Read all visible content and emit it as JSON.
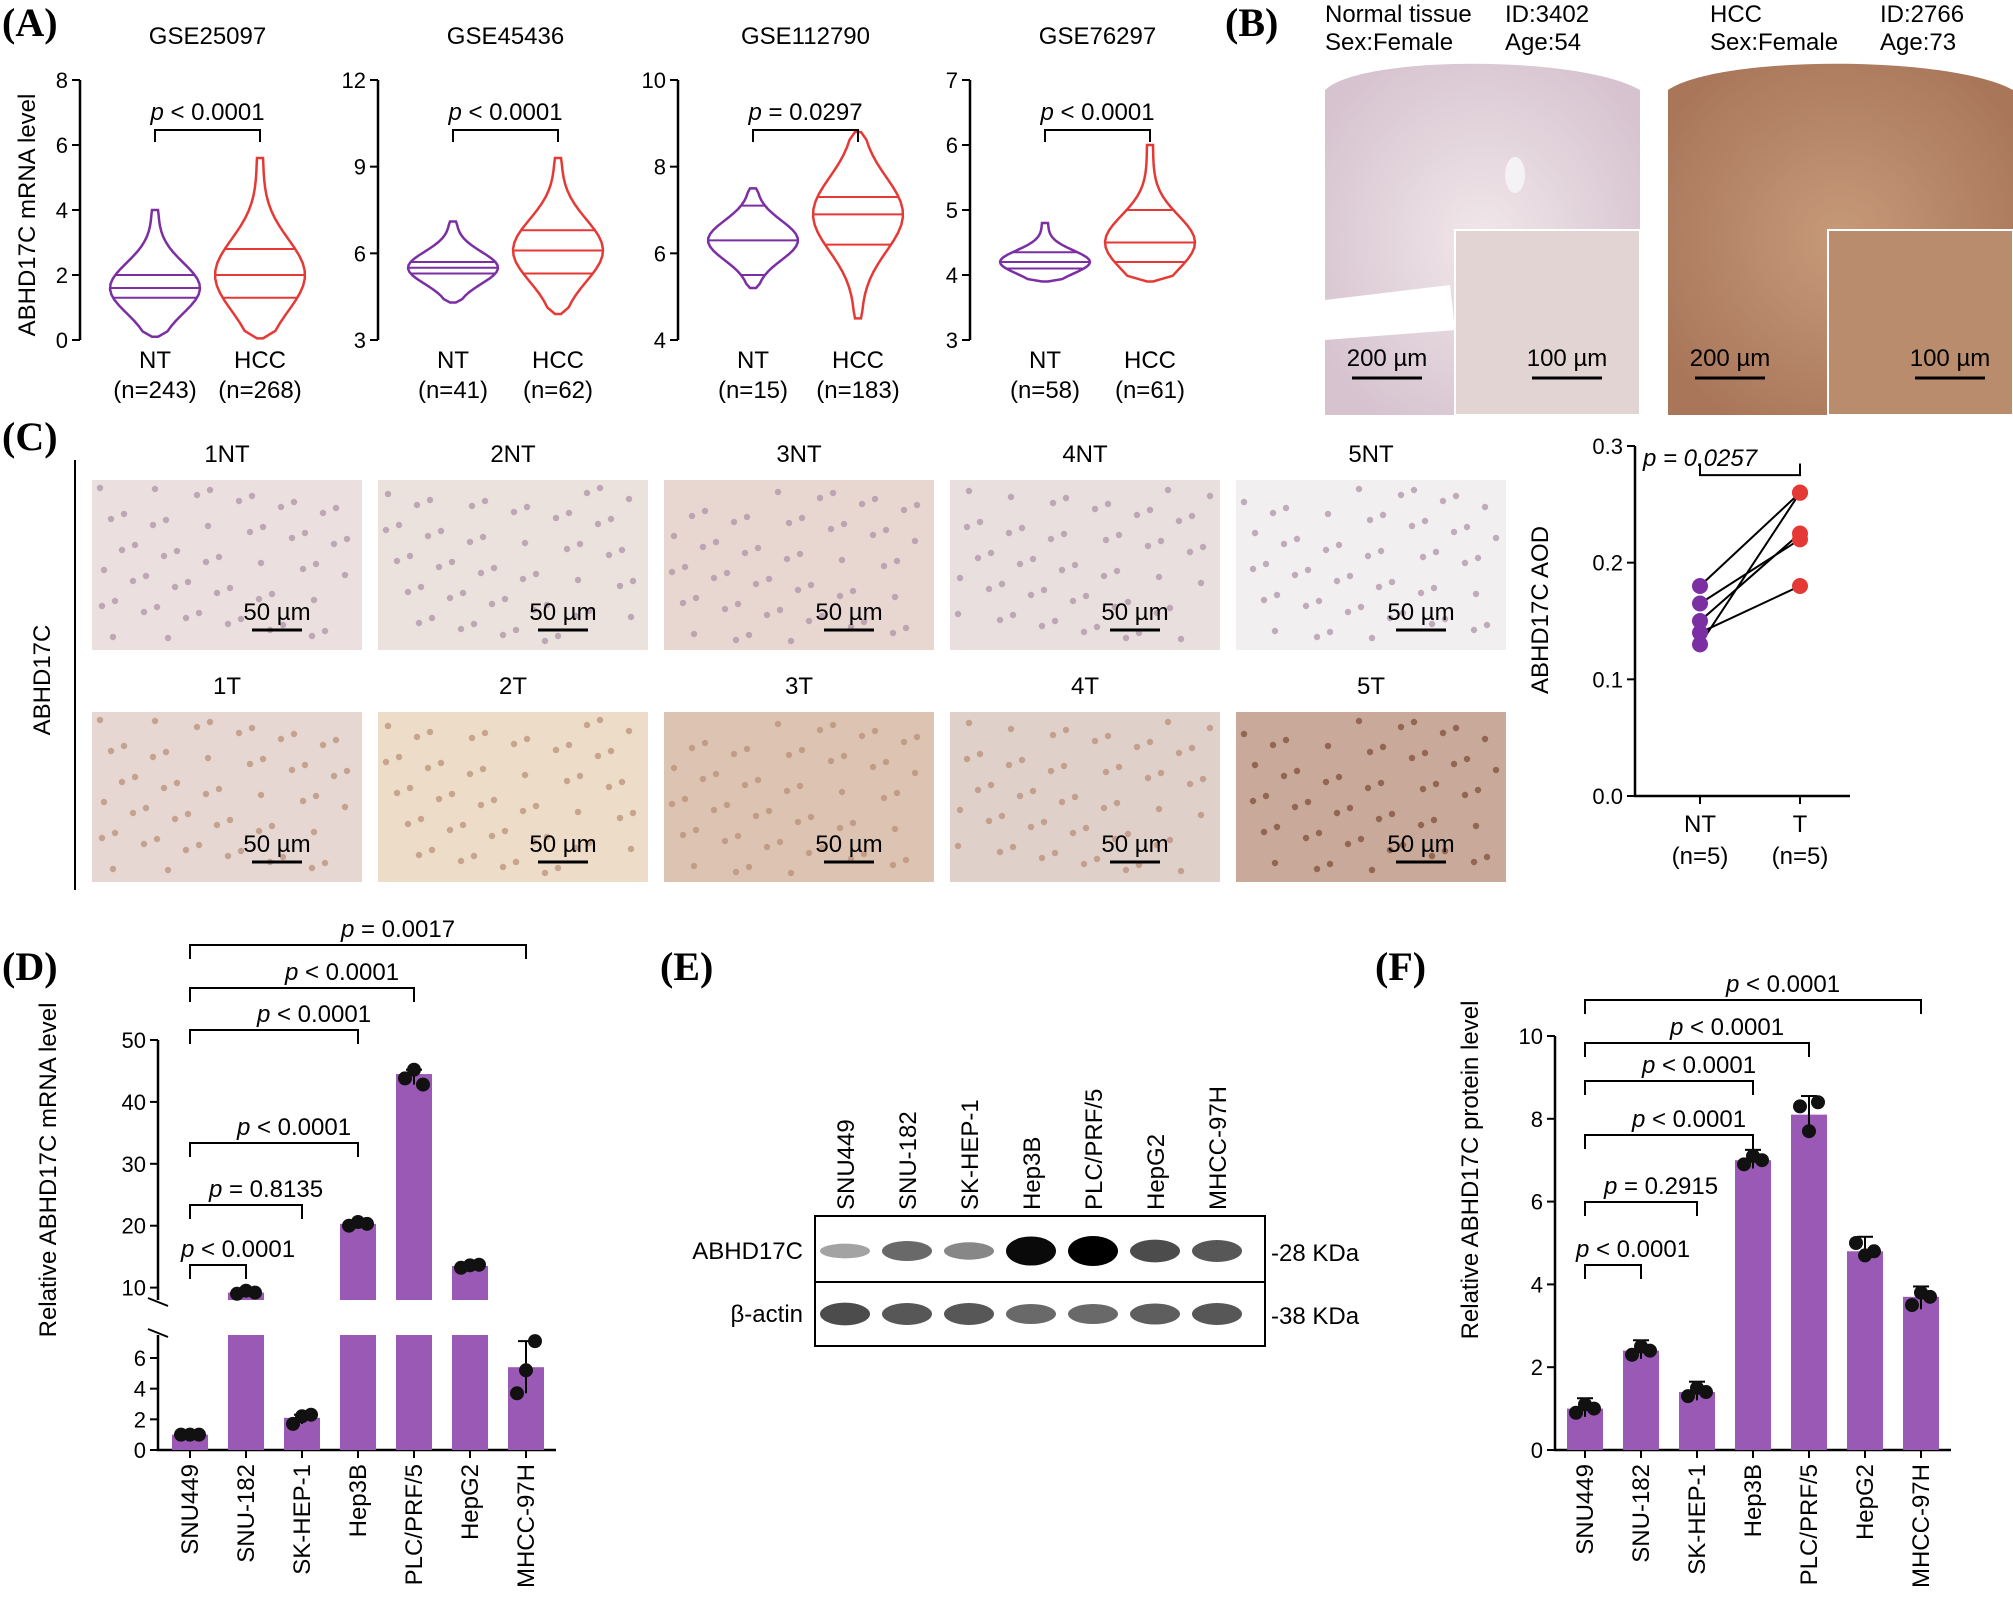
{
  "panels": {
    "A": {
      "letter": "(A)",
      "ylabel": "ABHD17C mRNA level",
      "charts": [
        {
          "title": "GSE25097",
          "p": "p < 0.0001",
          "ylim": [
            0,
            8
          ],
          "yticks": [
            "0",
            "2",
            "4",
            "6",
            "8"
          ],
          "groups": [
            {
              "label": "NT",
              "n": "(n=243)",
              "color": "#7b2fa3",
              "min": 0.1,
              "max": 4.0,
              "q": [
                1.3,
                1.6,
                2.0
              ]
            },
            {
              "label": "HCC",
              "n": "(n=268)",
              "color": "#e53935",
              "min": 0.05,
              "max": 5.6,
              "q": [
                1.3,
                2.0,
                2.8
              ]
            }
          ]
        },
        {
          "title": "GSE45436",
          "p": "p < 0.0001",
          "ylim": [
            3,
            12
          ],
          "yticks": [
            "3",
            "6",
            "9",
            "12"
          ],
          "groups": [
            {
              "label": "NT",
              "n": "(n=41)",
              "color": "#7b2fa3",
              "min": 4.3,
              "max": 7.1,
              "q": [
                5.3,
                5.5,
                5.7
              ]
            },
            {
              "label": "HCC",
              "n": "(n=62)",
              "color": "#e53935",
              "min": 3.9,
              "max": 9.3,
              "q": [
                5.3,
                6.1,
                6.8
              ]
            }
          ]
        },
        {
          "title": "GSE112790",
          "p": "p = 0.0297",
          "ylim": [
            4,
            10
          ],
          "yticks": [
            "4",
            "6",
            "8",
            "10"
          ],
          "groups": [
            {
              "label": "NT",
              "n": "(n=15)",
              "color": "#7b2fa3",
              "min": 5.2,
              "max": 7.5,
              "q": [
                5.5,
                6.3,
                7.1
              ]
            },
            {
              "label": "HCC",
              "n": "(n=183)",
              "color": "#e53935",
              "min": 4.5,
              "max": 8.8,
              "q": [
                6.2,
                6.9,
                7.3
              ]
            }
          ]
        },
        {
          "title": "GSE76297",
          "p": "p < 0.0001",
          "ylim": [
            3,
            7
          ],
          "yticks": [
            "3",
            "4",
            "5",
            "6",
            "7"
          ],
          "groups": [
            {
              "label": "NT",
              "n": "(n=58)",
              "color": "#7b2fa3",
              "min": 3.9,
              "max": 4.8,
              "q": [
                4.1,
                4.2,
                4.35
              ]
            },
            {
              "label": "HCC",
              "n": "(n=61)",
              "color": "#e53935",
              "min": 3.9,
              "max": 6.0,
              "q": [
                4.2,
                4.5,
                5.0
              ]
            }
          ]
        }
      ]
    },
    "B": {
      "letter": "(B)",
      "images": [
        {
          "title": "Normal tissue",
          "id": "ID:3402",
          "sex": "Sex:Female",
          "age": "Age:54",
          "scale1": "200 µm",
          "scale2": "100 µm"
        },
        {
          "title": "HCC",
          "id": "ID:2766",
          "sex": "Sex:Female",
          "age": "Age:73",
          "scale1": "200 µm",
          "scale2": "100 µm"
        }
      ]
    },
    "C": {
      "letter": "(C)",
      "row_label": "ABHD17C",
      "labels_nt": [
        "1NT",
        "2NT",
        "3NT",
        "4NT",
        "5NT"
      ],
      "labels_t": [
        "1T",
        "2T",
        "3T",
        "4T",
        "5T"
      ],
      "scale": "50 µm",
      "plot": {
        "ylabel": "ABHD17C AOD",
        "p": "p = 0.0257",
        "yticks": [
          "0.0",
          "0.1",
          "0.2",
          "0.3"
        ],
        "categories": [
          "NT",
          "T"
        ],
        "n": [
          "(n=5)",
          "(n=5)"
        ]
      }
    },
    "D": {
      "letter": "(D)",
      "ylabel": "Relative ABHD17C mRNA level",
      "upper_ticks": [
        "10",
        "20",
        "30",
        "40",
        "50"
      ],
      "lower_ticks": [
        "0",
        "2",
        "4",
        "6"
      ],
      "categories": [
        "SNU449",
        "SNU-182",
        "SK-HEP-1",
        "Hep3B",
        "PLC/PRF/5",
        "HepG2",
        "MHCC-97H"
      ],
      "pvals": [
        "p = 0.0017",
        "p < 0.0001",
        "p < 0.0001",
        "p < 0.0001",
        "p = 0.8135",
        "p < 0.0001"
      ]
    },
    "E": {
      "letter": "(E)",
      "lanes": [
        "SNU449",
        "SNU-182",
        "SK-HEP-1",
        "Hep3B",
        "PLC/PRF/5",
        "HepG2",
        "MHCC-97H"
      ],
      "rows": [
        {
          "label": "ABHD17C",
          "kda": "-28 KDa"
        },
        {
          "label": "β-actin",
          "kda": "-38 KDa"
        }
      ]
    },
    "F": {
      "letter": "(F)",
      "ylabel": "Relative ABHD17C protein level",
      "yticks": [
        "0",
        "2",
        "4",
        "6",
        "8",
        "10"
      ],
      "categories": [
        "SNU449",
        "SNU-182",
        "SK-HEP-1",
        "Hep3B",
        "PLC/PRF/5",
        "HepG2",
        "MHCC-97H"
      ],
      "pvals": [
        "p < 0.0001",
        "p < 0.0001",
        "p < 0.0001",
        "p < 0.0001",
        "p = 0.2915",
        "p < 0.0001"
      ]
    }
  },
  "chart_data": [
    {
      "type": "line",
      "panel": "C",
      "ylabel": "ABHD17C AOD",
      "ylim": [
        0,
        0.3
      ],
      "categories": [
        "NT",
        "T"
      ],
      "series": [
        {
          "values": [
            0.18,
            0.26
          ]
        },
        {
          "values": [
            0.165,
            0.22
          ]
        },
        {
          "values": [
            0.15,
            0.225
          ]
        },
        {
          "values": [
            0.14,
            0.18
          ]
        },
        {
          "values": [
            0.13,
            0.26
          ]
        }
      ],
      "annotation": "p = 0.0257"
    },
    {
      "type": "bar",
      "panel": "D",
      "ylabel": "Relative ABHD17C mRNA level",
      "ylim": [
        0,
        50
      ],
      "categories": [
        "SNU449",
        "SNU-182",
        "SK-HEP-1",
        "Hep3B",
        "PLC/PRF/5",
        "HepG2",
        "MHCC-97H"
      ],
      "values": [
        1.0,
        9.2,
        2.1,
        20.3,
        44.5,
        13.5,
        5.4
      ],
      "points": [
        [
          1.0,
          1.0,
          1.0
        ],
        [
          9.0,
          9.5,
          9.2
        ],
        [
          1.7,
          2.2,
          2.3
        ],
        [
          20.0,
          20.6,
          20.3
        ],
        [
          43.8,
          45.2,
          42.8
        ],
        [
          13.2,
          13.6,
          13.7
        ],
        [
          3.7,
          5.2,
          7.1
        ]
      ]
    },
    {
      "type": "bar",
      "panel": "F",
      "ylabel": "Relative ABHD17C protein level",
      "ylim": [
        0,
        10
      ],
      "categories": [
        "SNU449",
        "SNU-182",
        "SK-HEP-1",
        "Hep3B",
        "PLC/PRF/5",
        "HepG2",
        "MHCC-97H"
      ],
      "values": [
        1.0,
        2.4,
        1.4,
        7.0,
        8.1,
        4.8,
        3.7
      ],
      "points": [
        [
          0.9,
          1.1,
          1.0
        ],
        [
          2.3,
          2.5,
          2.4
        ],
        [
          1.3,
          1.5,
          1.4
        ],
        [
          6.9,
          7.1,
          7.0
        ],
        [
          8.3,
          7.7,
          8.4
        ],
        [
          5.0,
          4.7,
          4.8
        ],
        [
          3.5,
          3.8,
          3.7
        ]
      ]
    }
  ]
}
